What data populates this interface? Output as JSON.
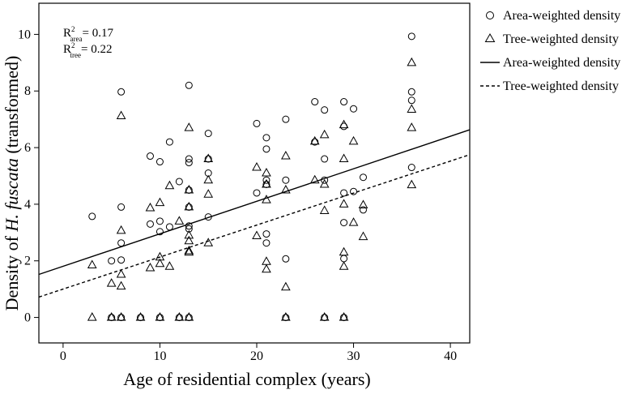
{
  "chart_data": {
    "type": "scatter",
    "xlabel": "Age of residential complex (years)",
    "ylabel_prefix": "Density of ",
    "ylabel_italic": "H. fuscata",
    "ylabel_suffix": " (transformed)",
    "xlim": [
      -2.5,
      42
    ],
    "ylim": [
      -0.9,
      11.1
    ],
    "xticks": [
      0,
      10,
      20,
      30,
      40
    ],
    "yticks": [
      0,
      2,
      4,
      6,
      8,
      10
    ],
    "grid": false,
    "legend_placement": "outside-right",
    "annotations": {
      "r2_area_base": "R",
      "r2_area_sup": "2",
      "r2_area_sub": "area",
      "r2_area_value": "= 0.17",
      "r2_tree_base": "R",
      "r2_tree_sup": "2",
      "r2_tree_sub": "tree",
      "r2_tree_value": "= 0.22"
    },
    "series": [
      {
        "name": "Area-weighted density",
        "marker": "circle",
        "points": [
          [
            3,
            3.57
          ],
          [
            5,
            2.0
          ],
          [
            5,
            0.0
          ],
          [
            6,
            7.97
          ],
          [
            6,
            3.9
          ],
          [
            6,
            2.63
          ],
          [
            6,
            2.03
          ],
          [
            6,
            0.0
          ],
          [
            8,
            0.0
          ],
          [
            9,
            5.7
          ],
          [
            9,
            3.3
          ],
          [
            10,
            5.5
          ],
          [
            10,
            3.4
          ],
          [
            10,
            3.03
          ],
          [
            10,
            0.0
          ],
          [
            11,
            6.2
          ],
          [
            11,
            3.2
          ],
          [
            12,
            4.8
          ],
          [
            12,
            0.0
          ],
          [
            13,
            8.2
          ],
          [
            13,
            5.6
          ],
          [
            13,
            5.47
          ],
          [
            13,
            4.5
          ],
          [
            13,
            3.9
          ],
          [
            13,
            3.23
          ],
          [
            13,
            3.13
          ],
          [
            13,
            0.0
          ],
          [
            15,
            6.5
          ],
          [
            15,
            5.6
          ],
          [
            15,
            5.1
          ],
          [
            15,
            3.55
          ],
          [
            20,
            6.85
          ],
          [
            20,
            4.4
          ],
          [
            21,
            6.35
          ],
          [
            21,
            5.95
          ],
          [
            21,
            4.85
          ],
          [
            21,
            4.7
          ],
          [
            21,
            2.95
          ],
          [
            21,
            2.63
          ],
          [
            23,
            7.0
          ],
          [
            23,
            4.85
          ],
          [
            23,
            2.07
          ],
          [
            23,
            0.0
          ],
          [
            26,
            7.62
          ],
          [
            26,
            6.2
          ],
          [
            27,
            7.33
          ],
          [
            27,
            5.6
          ],
          [
            27,
            4.85
          ],
          [
            27,
            0.0
          ],
          [
            29,
            7.62
          ],
          [
            29,
            6.75
          ],
          [
            29,
            4.4
          ],
          [
            29,
            3.35
          ],
          [
            29,
            2.08
          ],
          [
            29,
            0.0
          ],
          [
            30,
            7.37
          ],
          [
            30,
            4.45
          ],
          [
            31,
            4.95
          ],
          [
            31,
            3.8
          ],
          [
            36,
            9.93
          ],
          [
            36,
            7.97
          ],
          [
            36,
            7.67
          ],
          [
            36,
            5.3
          ]
        ]
      },
      {
        "name": "Tree-weighted density",
        "marker": "triangle",
        "points": [
          [
            3,
            1.85
          ],
          [
            3,
            0.0
          ],
          [
            5,
            1.2
          ],
          [
            5,
            0.0
          ],
          [
            6,
            7.12
          ],
          [
            6,
            3.07
          ],
          [
            6,
            1.52
          ],
          [
            6,
            1.1
          ],
          [
            6,
            0.0
          ],
          [
            8,
            0.0
          ],
          [
            9,
            3.87
          ],
          [
            9,
            1.75
          ],
          [
            10,
            4.05
          ],
          [
            10,
            2.13
          ],
          [
            10,
            1.9
          ],
          [
            10,
            0.0
          ],
          [
            11,
            4.65
          ],
          [
            11,
            1.8
          ],
          [
            12,
            3.4
          ],
          [
            12,
            0.0
          ],
          [
            13,
            6.7
          ],
          [
            13,
            4.5
          ],
          [
            13,
            3.9
          ],
          [
            13,
            2.9
          ],
          [
            13,
            2.7
          ],
          [
            13,
            2.35
          ],
          [
            13,
            2.3
          ],
          [
            13,
            0.0
          ],
          [
            15,
            5.6
          ],
          [
            15,
            4.85
          ],
          [
            15,
            4.35
          ],
          [
            15,
            2.63
          ],
          [
            20,
            5.3
          ],
          [
            20,
            2.88
          ],
          [
            21,
            5.1
          ],
          [
            21,
            4.7
          ],
          [
            21,
            4.15
          ],
          [
            21,
            1.97
          ],
          [
            21,
            1.7
          ],
          [
            23,
            5.7
          ],
          [
            23,
            4.5
          ],
          [
            23,
            1.07
          ],
          [
            23,
            0.0
          ],
          [
            26,
            6.22
          ],
          [
            26,
            4.85
          ],
          [
            27,
            6.45
          ],
          [
            27,
            4.7
          ],
          [
            27,
            3.77
          ],
          [
            27,
            0.0
          ],
          [
            29,
            6.8
          ],
          [
            29,
            5.6
          ],
          [
            29,
            4.0
          ],
          [
            29,
            2.3
          ],
          [
            29,
            1.8
          ],
          [
            29,
            0.0
          ],
          [
            30,
            6.22
          ],
          [
            30,
            3.35
          ],
          [
            31,
            3.97
          ],
          [
            31,
            2.85
          ],
          [
            36,
            9.0
          ],
          [
            36,
            7.35
          ],
          [
            36,
            6.7
          ],
          [
            36,
            4.68
          ]
        ]
      },
      {
        "name": "Area-weighted density",
        "type": "line",
        "style": "solid",
        "x": [
          -2.5,
          42
        ],
        "y": [
          1.52,
          6.63
        ]
      },
      {
        "name": "Tree-weighted density",
        "type": "line",
        "style": "dashed",
        "x": [
          -2.5,
          42
        ],
        "y": [
          0.72,
          5.75
        ]
      }
    ]
  }
}
